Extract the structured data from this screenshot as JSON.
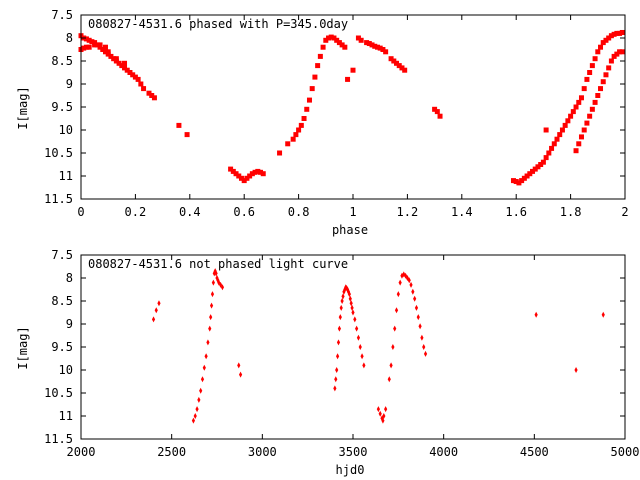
{
  "chart_data": [
    {
      "type": "scatter",
      "title": "080827-4531.6 phased with P=345.0day",
      "xlabel": "phase",
      "ylabel": "I[mag]",
      "xlim": [
        0,
        2
      ],
      "ylim": [
        7.5,
        11.5
      ],
      "y_inverted": true,
      "x_ticks": [
        "0",
        "0.2",
        "0.4",
        "0.6",
        "0.8",
        "1",
        "1.2",
        "1.4",
        "1.6",
        "1.8",
        "2"
      ],
      "y_ticks": [
        "7.5",
        "8",
        "8.5",
        "9",
        "9.5",
        "10",
        "10.5",
        "11",
        "11.5"
      ],
      "grid": false,
      "marker_color": "#ff0000",
      "series": [
        {
          "x": [
            0.0,
            0.01,
            0.02,
            0.03,
            0.04,
            0.05,
            0.06,
            0.07,
            0.08,
            0.09,
            0.1,
            0.11,
            0.12,
            0.13,
            0.14,
            0.15,
            0.16,
            0.17,
            0.18,
            0.19,
            0.2,
            0.21,
            0.22,
            0.23,
            0.25,
            0.26,
            0.27,
            0.0,
            0.01,
            0.02,
            0.03,
            0.05,
            0.07,
            0.09,
            0.1,
            0.13,
            0.16,
            0.36,
            0.39,
            0.55,
            0.56,
            0.57,
            0.58,
            0.59,
            0.6,
            0.61,
            0.62,
            0.63,
            0.64,
            0.65,
            0.66,
            0.67,
            0.73,
            0.76,
            0.78,
            0.79,
            0.8,
            0.81,
            0.82,
            0.83,
            0.84,
            0.85,
            0.86,
            0.87,
            0.88,
            0.89,
            0.9,
            0.91,
            0.92,
            0.93,
            0.94,
            0.95,
            0.96,
            0.97,
            0.98,
            1.0,
            1.02,
            1.03,
            1.05,
            1.06,
            1.07,
            1.08,
            1.09,
            1.1,
            1.11,
            1.12,
            1.14,
            1.15,
            1.16,
            1.17,
            1.18,
            1.19,
            1.3,
            1.31,
            1.32,
            1.59,
            1.6,
            1.61,
            1.62,
            1.63,
            1.64,
            1.65,
            1.66,
            1.67,
            1.68,
            1.69,
            1.7,
            1.71,
            1.72,
            1.73,
            1.74,
            1.75,
            1.76,
            1.77,
            1.78,
            1.79,
            1.8,
            1.81,
            1.82,
            1.83,
            1.84,
            1.85,
            1.86,
            1.87,
            1.88,
            1.89,
            1.9,
            1.91,
            1.92,
            1.93,
            1.94,
            1.95,
            1.96,
            1.97,
            1.98,
            1.99,
            1.82,
            1.83,
            1.84,
            1.85,
            1.86,
            1.87,
            1.88,
            1.89,
            1.9,
            1.91,
            1.92,
            1.93,
            1.94,
            1.95,
            1.96,
            1.97,
            1.98,
            1.99,
            1.71
          ],
          "y": [
            7.95,
            8.0,
            8.02,
            8.05,
            8.08,
            8.1,
            8.15,
            8.2,
            8.25,
            8.3,
            8.35,
            8.4,
            8.45,
            8.5,
            8.55,
            8.6,
            8.65,
            8.7,
            8.75,
            8.8,
            8.85,
            8.9,
            9.0,
            9.1,
            9.2,
            9.25,
            9.3,
            8.25,
            8.22,
            8.2,
            8.2,
            8.15,
            8.15,
            8.2,
            8.3,
            8.45,
            8.55,
            9.9,
            10.1,
            10.85,
            10.9,
            10.95,
            11.0,
            11.05,
            11.1,
            11.05,
            11.0,
            10.95,
            10.92,
            10.9,
            10.92,
            10.95,
            10.5,
            10.3,
            10.2,
            10.1,
            10.0,
            9.9,
            9.75,
            9.55,
            9.35,
            9.1,
            8.85,
            8.6,
            8.4,
            8.2,
            8.05,
            8.0,
            7.98,
            8.0,
            8.05,
            8.1,
            8.15,
            8.2,
            8.9,
            8.7,
            8.0,
            8.05,
            8.1,
            8.12,
            8.15,
            8.18,
            8.2,
            8.22,
            8.25,
            8.3,
            8.45,
            8.5,
            8.55,
            8.6,
            8.65,
            8.7,
            9.55,
            9.6,
            9.7,
            11.1,
            11.12,
            11.15,
            11.1,
            11.05,
            11.0,
            10.95,
            10.9,
            10.85,
            10.8,
            10.75,
            10.7,
            10.6,
            10.5,
            10.4,
            10.3,
            10.2,
            10.1,
            10.0,
            9.9,
            9.8,
            9.7,
            9.6,
            9.5,
            9.4,
            9.3,
            9.1,
            8.9,
            8.75,
            8.6,
            8.45,
            8.3,
            8.2,
            8.1,
            8.05,
            8.0,
            7.95,
            7.92,
            7.9,
            7.9,
            7.88,
            10.45,
            10.3,
            10.15,
            10.0,
            9.85,
            9.7,
            9.55,
            9.4,
            9.25,
            9.1,
            8.95,
            8.8,
            8.65,
            8.5,
            8.4,
            8.35,
            8.3,
            8.3,
            10.0
          ]
        }
      ]
    },
    {
      "type": "scatter",
      "title": "080827-4531.6 not phased light curve",
      "xlabel": "hjd0",
      "ylabel": "I[mag]",
      "xlim": [
        2000,
        5000
      ],
      "ylim": [
        7.5,
        11.5
      ],
      "y_inverted": true,
      "x_ticks": [
        "2000",
        "2500",
        "3000",
        "3500",
        "4000",
        "4500",
        "5000"
      ],
      "y_ticks": [
        "7.5",
        "8",
        "8.5",
        "9",
        "9.5",
        "10",
        "10.5",
        "11",
        "11.5"
      ],
      "grid": false,
      "marker_color": "#ff0000",
      "series": [
        {
          "x": [
            2400,
            2415,
            2430,
            2620,
            2630,
            2640,
            2650,
            2660,
            2670,
            2680,
            2690,
            2700,
            2710,
            2715,
            2720,
            2725,
            2730,
            2735,
            2740,
            2745,
            2750,
            2755,
            2760,
            2770,
            2780,
            2870,
            2880,
            3400,
            3405,
            3410,
            3415,
            3420,
            3425,
            3430,
            3435,
            3440,
            3445,
            3450,
            3455,
            3460,
            3465,
            3470,
            3475,
            3480,
            3485,
            3490,
            3495,
            3500,
            3510,
            3520,
            3530,
            3540,
            3550,
            3560,
            3640,
            3650,
            3660,
            3665,
            3670,
            3680,
            3700,
            3710,
            3720,
            3730,
            3740,
            3750,
            3760,
            3770,
            3780,
            3790,
            3800,
            3810,
            3820,
            3830,
            3840,
            3850,
            3860,
            3870,
            3880,
            3890,
            3900,
            4510,
            4730,
            4880
          ],
          "y": [
            8.9,
            8.7,
            8.55,
            11.1,
            11.0,
            10.85,
            10.65,
            10.45,
            10.2,
            9.95,
            9.7,
            9.4,
            9.1,
            8.85,
            8.6,
            8.35,
            8.1,
            7.9,
            7.85,
            7.9,
            8.0,
            8.05,
            8.1,
            8.15,
            8.2,
            9.9,
            10.1,
            10.4,
            10.2,
            10.0,
            9.7,
            9.4,
            9.1,
            8.85,
            8.65,
            8.5,
            8.4,
            8.3,
            8.25,
            8.2,
            8.22,
            8.25,
            8.3,
            8.35,
            8.45,
            8.55,
            8.65,
            8.75,
            8.9,
            9.1,
            9.3,
            9.5,
            9.7,
            9.9,
            10.85,
            10.95,
            11.05,
            11.1,
            11.0,
            10.85,
            10.2,
            9.9,
            9.5,
            9.1,
            8.7,
            8.35,
            8.1,
            7.95,
            7.92,
            7.95,
            8.0,
            8.05,
            8.15,
            8.3,
            8.45,
            8.65,
            8.85,
            9.05,
            9.3,
            9.5,
            9.65,
            8.8,
            10.0,
            8.8
          ]
        }
      ]
    }
  ]
}
